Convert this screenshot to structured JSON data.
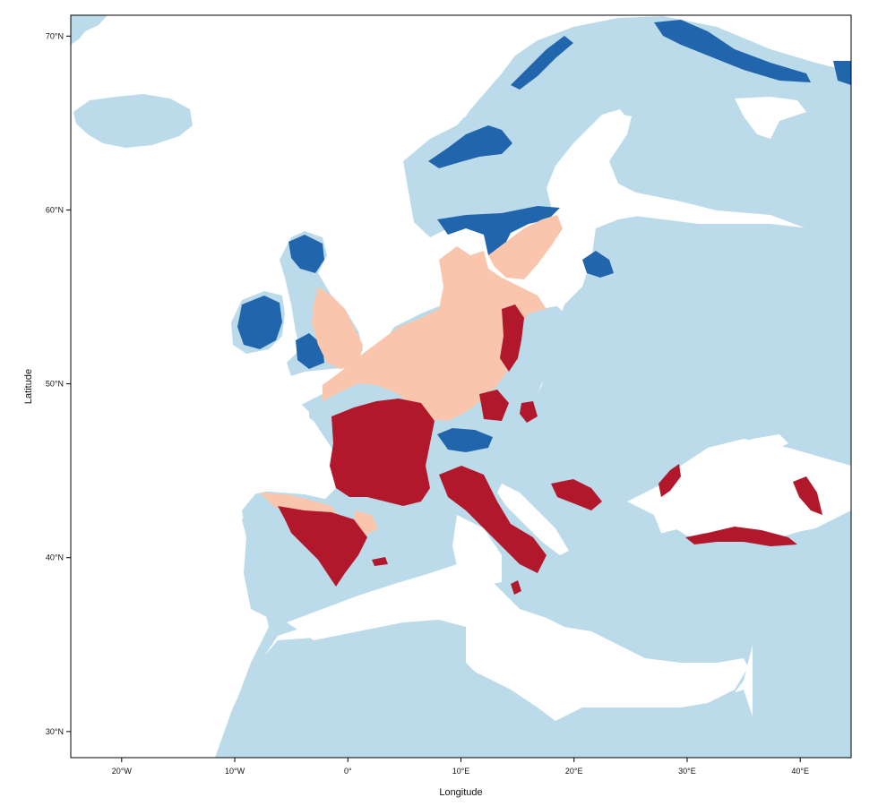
{
  "map": {
    "xlabel": "Longitude",
    "ylabel": "Latitude",
    "x_ticks": [
      {
        "value": -20,
        "label": "20°W"
      },
      {
        "value": -10,
        "label": "10°W"
      },
      {
        "value": 0,
        "label": "0°"
      },
      {
        "value": 10,
        "label": "10°E"
      },
      {
        "value": 20,
        "label": "20°E"
      },
      {
        "value": 30,
        "label": "30°E"
      },
      {
        "value": 40,
        "label": "40°E"
      }
    ],
    "y_ticks": [
      {
        "value": 30,
        "label": "30°N"
      },
      {
        "value": 40,
        "label": "40°N"
      },
      {
        "value": 50,
        "label": "50°N"
      },
      {
        "value": 60,
        "label": "60°N"
      },
      {
        "value": 70,
        "label": "70°N"
      }
    ],
    "xlim": [
      -24.5,
      44.5
    ],
    "ylim": [
      28.5,
      71.2
    ],
    "colors": {
      "land_background": "#bcdbea",
      "water": "#ffffff",
      "dark_blue": "#2166ac",
      "light_salmon": "#f9c6ad",
      "dark_red": "#b2182b",
      "frame": "#000000"
    }
  }
}
